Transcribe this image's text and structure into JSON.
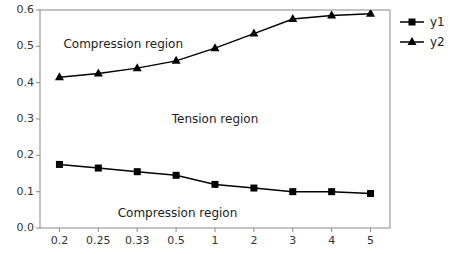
{
  "chart_data": {
    "type": "line",
    "categories": [
      "0.2",
      "0.25",
      "0.33",
      "0.5",
      "1",
      "2",
      "3",
      "4",
      "5"
    ],
    "series": [
      {
        "name": "y1",
        "color": "#000000",
        "marker": "square",
        "values": [
          0.175,
          0.165,
          0.155,
          0.145,
          0.12,
          0.11,
          0.1,
          0.1,
          0.095
        ]
      },
      {
        "name": "y2",
        "color": "#000000",
        "marker": "triangle",
        "values": [
          0.415,
          0.425,
          0.44,
          0.46,
          0.495,
          0.535,
          0.575,
          0.585,
          0.59
        ]
      }
    ],
    "ylim": [
      0,
      0.6
    ],
    "yticks": [
      {
        "value": 0,
        "label": "0.0"
      },
      0.1,
      0.2,
      0.3,
      0.4,
      0.5,
      0.6
    ],
    "annotations": [
      "Compression region",
      "Tension region",
      "Compression region"
    ],
    "legend": "upper right",
    "grid": false
  }
}
